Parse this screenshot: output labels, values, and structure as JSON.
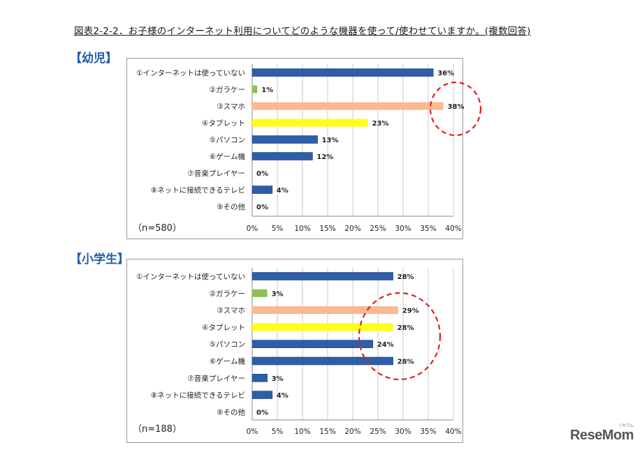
{
  "title": "図表2-2-2．お子様のインターネット利用についてどのような機器を使って/使わせていますか。(複数回答)",
  "logo": {
    "main": "ReseMom",
    "sub": "リセマム"
  },
  "colors": {
    "blue": "#2e5ea8",
    "green": "#8cc153",
    "orange": "#fab98f",
    "yellow": "#ffff1a",
    "highlight": "#e02020"
  },
  "chart_data": [
    {
      "type": "bar",
      "orientation": "horizontal",
      "section_label": "【幼児】",
      "n_label": "（n=580）",
      "categories": [
        "①インターネットは使っていない",
        "②ガラケー",
        "③スマホ",
        "④タブレット",
        "⑤パソコン",
        "⑥ゲーム機",
        "⑦音楽プレイヤー",
        "⑧ネットに接続できるテレビ",
        "⑨その他"
      ],
      "values": [
        36,
        1,
        38,
        23,
        13,
        12,
        0,
        4,
        0
      ],
      "value_labels": [
        "36%",
        "1%",
        "38%",
        "23%",
        "13%",
        "12%",
        "0%",
        "4%",
        "0%"
      ],
      "bar_colors": [
        "blue",
        "green",
        "orange",
        "yellow",
        "blue",
        "blue",
        "blue",
        "blue",
        "blue"
      ],
      "xlim": [
        0,
        40
      ],
      "xticks": [
        "0%",
        "5%",
        "10%",
        "15%",
        "20%",
        "25%",
        "30%",
        "35%",
        "40%"
      ],
      "annotation": "dashed circle around ③スマホ 38%"
    },
    {
      "type": "bar",
      "orientation": "horizontal",
      "section_label": "【小学生】",
      "n_label": "（n=188）",
      "categories": [
        "①インターネットは使っていない",
        "②ガラケー",
        "③スマホ",
        "④タブレット",
        "⑤パソコン",
        "⑥ゲーム機",
        "⑦音楽プレイヤー",
        "⑧ネットに接続できるテレビ",
        "⑨その他"
      ],
      "values": [
        28,
        3,
        29,
        28,
        24,
        28,
        3,
        4,
        0
      ],
      "value_labels": [
        "28%",
        "3%",
        "29%",
        "28%",
        "24%",
        "28%",
        "3%",
        "4%",
        "0%"
      ],
      "bar_colors": [
        "blue",
        "green",
        "orange",
        "yellow",
        "blue",
        "blue",
        "blue",
        "blue",
        "blue"
      ],
      "xlim": [
        0,
        40
      ],
      "xticks": [
        "0%",
        "5%",
        "10%",
        "15%",
        "20%",
        "25%",
        "30%",
        "35%",
        "40%"
      ],
      "annotation": "dashed circle around ③スマホ–⑥ゲーム機"
    }
  ]
}
